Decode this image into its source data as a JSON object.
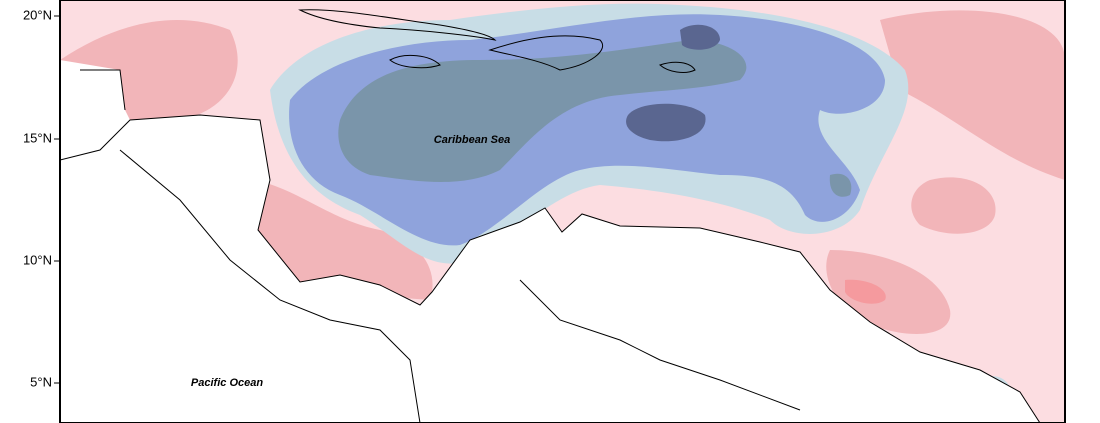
{
  "map": {
    "lat_ticks": [
      "20°N",
      "15°N",
      "10°N",
      "5°N"
    ],
    "labels": [
      "Caribbean Sea",
      "Pacific Ocean"
    ]
  }
}
